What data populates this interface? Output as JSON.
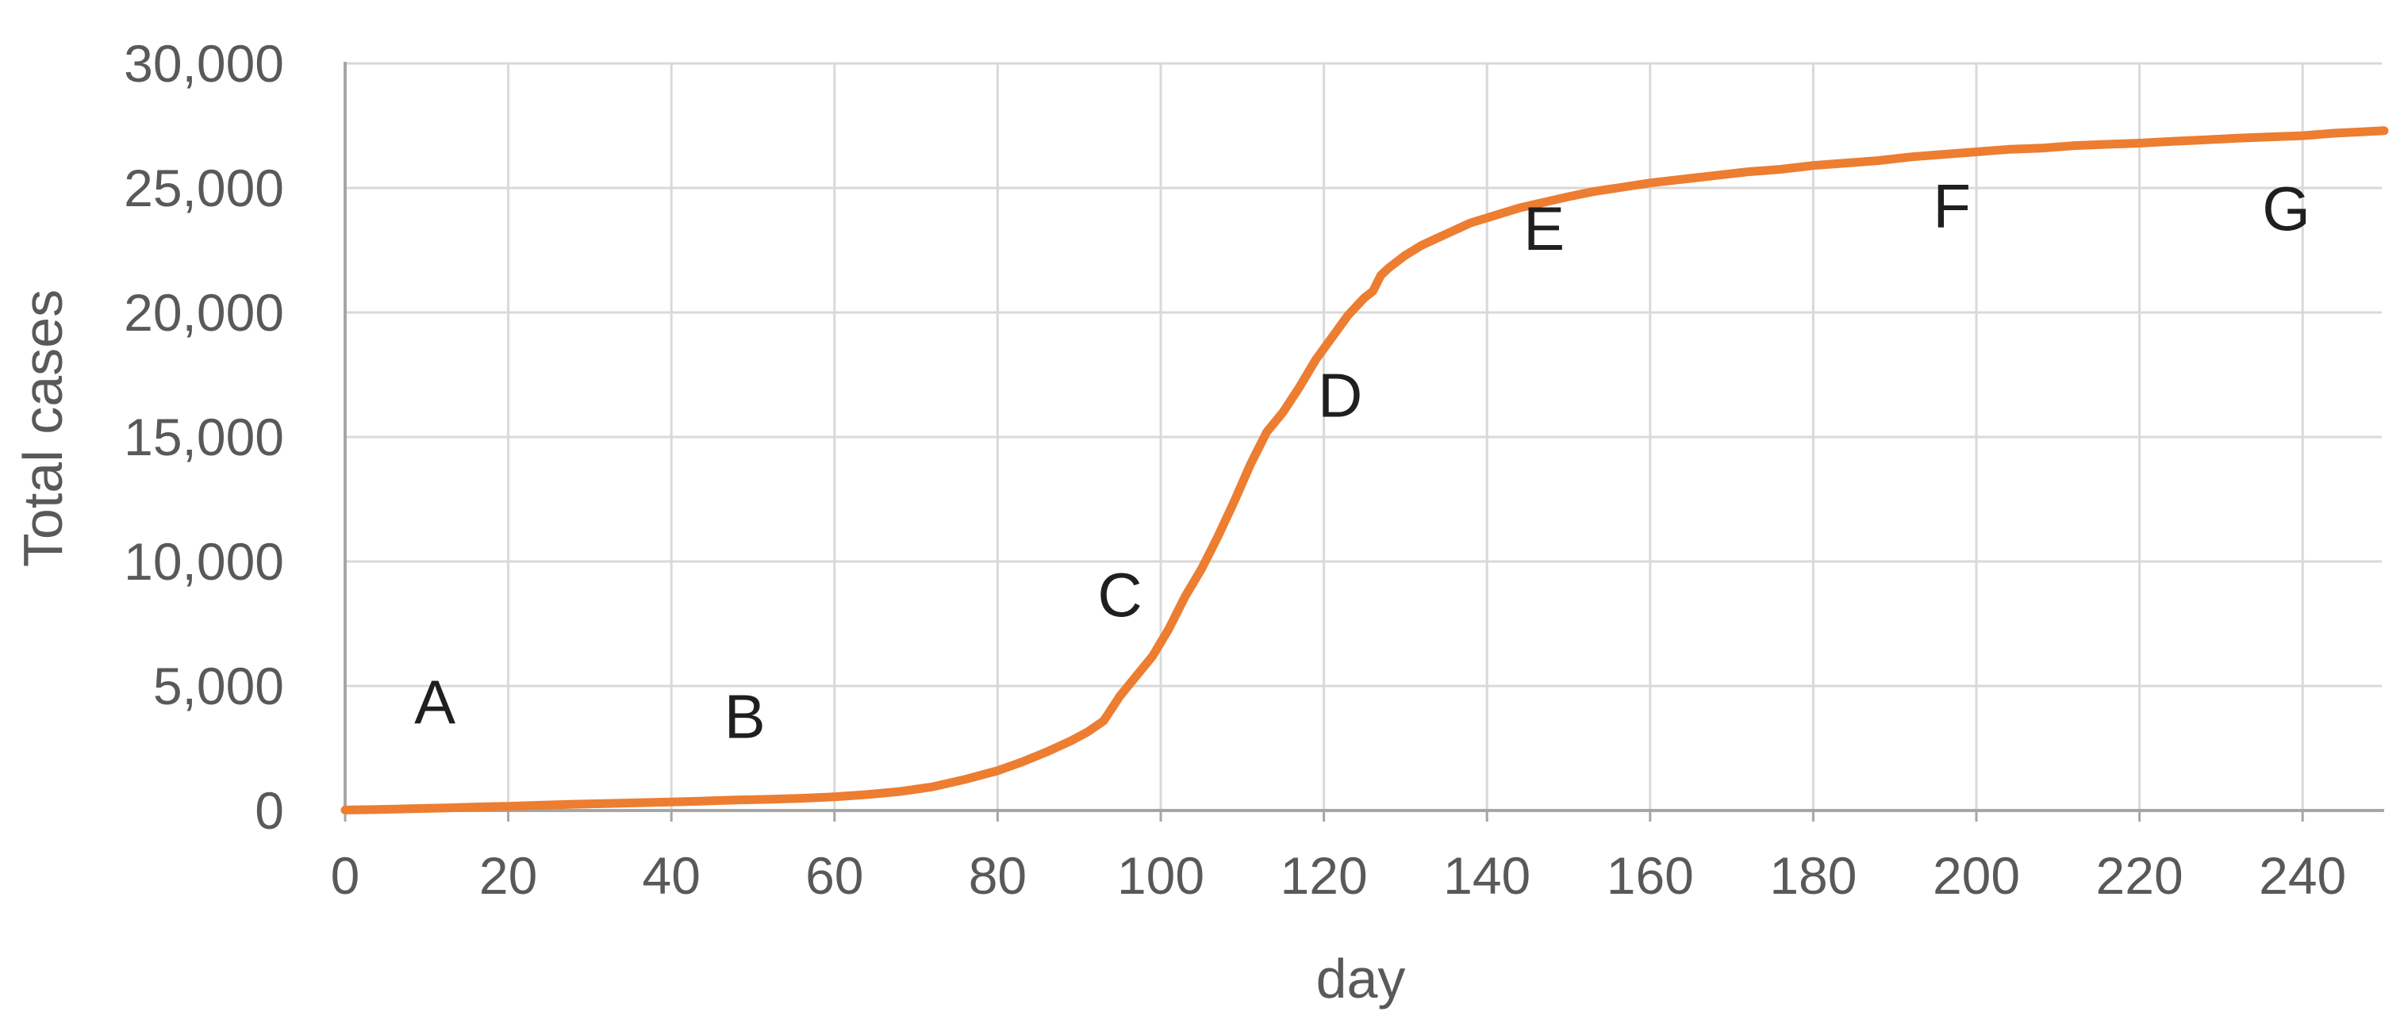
{
  "chart_data": {
    "type": "line",
    "title": "",
    "xlabel": "day",
    "ylabel": "Total cases",
    "xlim": [
      0,
      250
    ],
    "ylim": [
      0,
      30000
    ],
    "grid": true,
    "legend": "none",
    "x_ticks": [
      0,
      20,
      40,
      60,
      80,
      100,
      120,
      140,
      160,
      180,
      200,
      220,
      240
    ],
    "y_ticks": [
      0,
      5000,
      10000,
      15000,
      20000,
      25000,
      30000
    ],
    "y_tick_labels": [
      "0",
      "5,000",
      "10,000",
      "15,000",
      "20,000",
      "25,000",
      "30,000"
    ],
    "series": [
      {
        "name": "Total cases",
        "color": "#ED7D31",
        "points": [
          [
            0,
            20
          ],
          [
            4,
            40
          ],
          [
            8,
            70
          ],
          [
            12,
            100
          ],
          [
            16,
            140
          ],
          [
            20,
            170
          ],
          [
            24,
            210
          ],
          [
            28,
            250
          ],
          [
            32,
            280
          ],
          [
            36,
            310
          ],
          [
            40,
            340
          ],
          [
            44,
            380
          ],
          [
            48,
            420
          ],
          [
            52,
            450
          ],
          [
            56,
            490
          ],
          [
            60,
            550
          ],
          [
            64,
            640
          ],
          [
            68,
            760
          ],
          [
            72,
            950
          ],
          [
            76,
            1250
          ],
          [
            80,
            1600
          ],
          [
            83,
            1950
          ],
          [
            86,
            2350
          ],
          [
            89,
            2800
          ],
          [
            91,
            3150
          ],
          [
            93,
            3600
          ],
          [
            95,
            4600
          ],
          [
            97,
            5400
          ],
          [
            99,
            6200
          ],
          [
            101,
            7300
          ],
          [
            103,
            8600
          ],
          [
            105,
            9700
          ],
          [
            107,
            11000
          ],
          [
            109,
            12400
          ],
          [
            111,
            13900
          ],
          [
            113,
            15200
          ],
          [
            115,
            16000
          ],
          [
            117,
            17000
          ],
          [
            119,
            18100
          ],
          [
            121,
            19000
          ],
          [
            123,
            19900
          ],
          [
            125,
            20600
          ],
          [
            126,
            20850
          ],
          [
            127,
            21500
          ],
          [
            128,
            21800
          ],
          [
            130,
            22300
          ],
          [
            132,
            22700
          ],
          [
            134,
            23000
          ],
          [
            136,
            23300
          ],
          [
            138,
            23600
          ],
          [
            140,
            23800
          ],
          [
            142,
            24000
          ],
          [
            144,
            24200
          ],
          [
            146,
            24350
          ],
          [
            148,
            24500
          ],
          [
            150,
            24650
          ],
          [
            153,
            24850
          ],
          [
            156,
            25000
          ],
          [
            160,
            25200
          ],
          [
            164,
            25350
          ],
          [
            168,
            25500
          ],
          [
            172,
            25650
          ],
          [
            176,
            25750
          ],
          [
            180,
            25900
          ],
          [
            184,
            26000
          ],
          [
            188,
            26100
          ],
          [
            192,
            26250
          ],
          [
            196,
            26350
          ],
          [
            200,
            26450
          ],
          [
            204,
            26550
          ],
          [
            208,
            26600
          ],
          [
            212,
            26700
          ],
          [
            216,
            26750
          ],
          [
            220,
            26800
          ],
          [
            224,
            26870
          ],
          [
            228,
            26930
          ],
          [
            232,
            27000
          ],
          [
            236,
            27050
          ],
          [
            240,
            27100
          ],
          [
            244,
            27200
          ],
          [
            247,
            27250
          ],
          [
            250,
            27300
          ]
        ]
      }
    ],
    "annotations": [
      {
        "label": "A",
        "day": 11,
        "value": 4400
      },
      {
        "label": "B",
        "day": 49,
        "value": 3800
      },
      {
        "label": "C",
        "day": 95,
        "value": 8700
      },
      {
        "label": "D",
        "day": 122,
        "value": 16700
      },
      {
        "label": "E",
        "day": 147,
        "value": 23400
      },
      {
        "label": "F",
        "day": 197,
        "value": 24300
      },
      {
        "label": "G",
        "day": 238,
        "value": 24200
      }
    ]
  },
  "styles": {
    "background": "#FFFFFF",
    "line_color": "#ED7D31",
    "grid_color": "#D9D9D9",
    "axis_color": "#A6A6A6",
    "tick_label_color": "#595959",
    "annotation_color": "#1F1F1F"
  }
}
